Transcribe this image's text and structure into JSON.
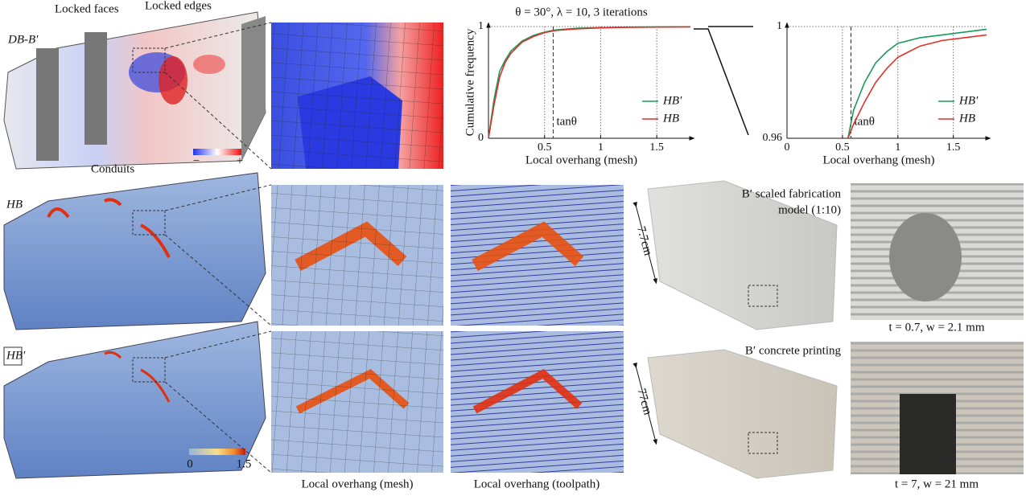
{
  "chart_data": [
    {
      "type": "line",
      "title": "θ = 30°, λ = 10, 3 iterations",
      "x_label": "Local overhang (mesh)",
      "y_label": "Cumulative frequency",
      "x": [
        0,
        0.05,
        0.1,
        0.15,
        0.2,
        0.3,
        0.4,
        0.5,
        0.6,
        0.8,
        1.0,
        1.2,
        1.5,
        1.8
      ],
      "series": [
        {
          "name": "HB′",
          "color": "#1a9a5a",
          "values": [
            0,
            0.35,
            0.6,
            0.7,
            0.78,
            0.87,
            0.92,
            0.95,
            0.97,
            0.985,
            0.99,
            0.994,
            0.997,
            0.998
          ]
        },
        {
          "name": "HB",
          "color": "#e0302a",
          "values": [
            0,
            0.3,
            0.55,
            0.68,
            0.76,
            0.86,
            0.91,
            0.945,
            0.965,
            0.98,
            0.988,
            0.992,
            0.995,
            0.997
          ]
        }
      ],
      "xlim": [
        0,
        1.8
      ],
      "xticks": [
        0.5,
        1,
        1.5
      ],
      "ylim": [
        0,
        1
      ],
      "yticks": [
        0,
        1
      ],
      "grid": true,
      "legend": "lower right",
      "annotations": [
        {
          "text": "tanθ",
          "x": 0.577
        }
      ]
    },
    {
      "type": "line",
      "x_label": "Local overhang (mesh)",
      "x": [
        0.55,
        0.6,
        0.7,
        0.8,
        0.9,
        1.0,
        1.1,
        1.2,
        1.4,
        1.6,
        1.8
      ],
      "series": [
        {
          "name": "HB′",
          "color": "#1a9a5a",
          "values": [
            0.96,
            0.97,
            0.98,
            0.987,
            0.991,
            0.994,
            0.995,
            0.996,
            0.997,
            0.998,
            0.999
          ]
        },
        {
          "name": "HB",
          "color": "#e0302a",
          "values": [
            0.96,
            0.965,
            0.973,
            0.98,
            0.985,
            0.989,
            0.991,
            0.993,
            0.995,
            0.996,
            0.997
          ]
        }
      ],
      "xlim": [
        0,
        1.8
      ],
      "xticks": [
        0,
        0.5,
        1,
        1.5
      ],
      "ylim": [
        0.96,
        1
      ],
      "yticks": [
        0.96,
        1
      ],
      "grid": true,
      "legend": "lower right",
      "annotations": [
        {
          "text": "tanθ",
          "x": 0.577
        }
      ]
    }
  ],
  "panels": {
    "difference": {
      "label": "DB-B′",
      "callouts": [
        "Locked faces",
        "Locked edges",
        "Conduits"
      ],
      "colorbar": [
        "−",
        "+"
      ]
    },
    "hb": {
      "label": "HB"
    },
    "hbp": {
      "label": "HB′",
      "colorbar": [
        "0",
        "1.5"
      ]
    },
    "photos": [
      {
        "title": [
          "B′ scaled fabrication",
          "model (1:10)"
        ],
        "scale": "7.7cm",
        "caption": "t = 0.7, w = 2.1 mm"
      },
      {
        "title": [
          "B′ concrete printing"
        ],
        "scale": "77cm",
        "caption": "t = 7, w = 21 mm"
      }
    ],
    "captions": [
      "Local overhang (mesh)",
      "Local overhang (toolpath)"
    ]
  }
}
